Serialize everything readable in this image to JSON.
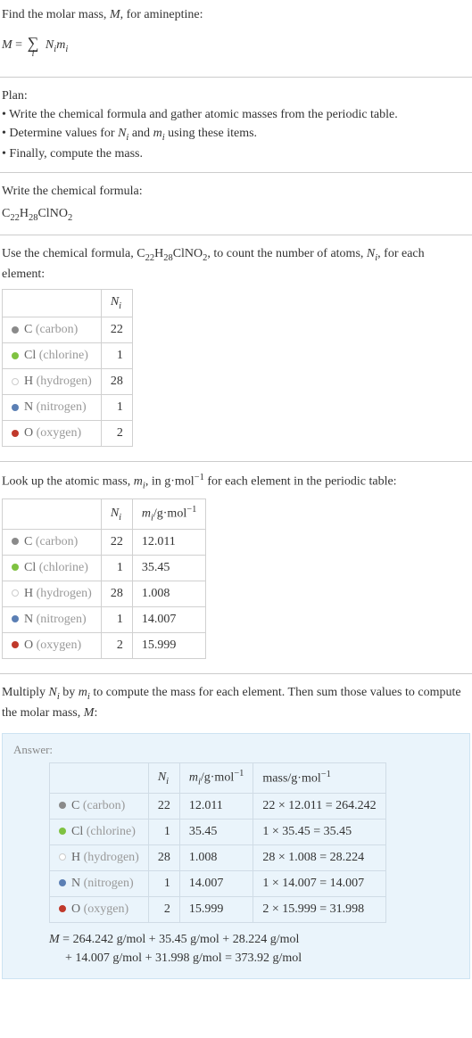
{
  "intro": {
    "line1": "Find the molar mass, ",
    "line1_var": "M",
    "line1_end": ", for amineptine:",
    "eq_lhs": "M",
    "eq_eq": " = ",
    "eq_sigma": "∑",
    "eq_under": "i",
    "eq_rhs1": "N",
    "eq_rhs1_sub": "i",
    "eq_rhs2": "m",
    "eq_rhs2_sub": "i"
  },
  "plan": {
    "title": "Plan:",
    "b1": "• Write the chemical formula and gather atomic masses from the periodic table.",
    "b2_a": "• Determine values for ",
    "b2_n": "N",
    "b2_ni": "i",
    "b2_b": " and ",
    "b2_m": "m",
    "b2_mi": "i",
    "b2_c": " using these items.",
    "b3": "• Finally, compute the mass."
  },
  "chem": {
    "title": "Write the chemical formula:",
    "c": "C",
    "c22": "22",
    "h": "H",
    "h28": "28",
    "cl": "Cl",
    "n": "N",
    "o": "O",
    "o2": "2"
  },
  "count": {
    "pre": "Use the chemical formula, ",
    "post_a": ", to count the number of atoms, ",
    "post_n": "N",
    "post_ni": "i",
    "post_b": ", for each element:",
    "header_n": "N",
    "header_ni": "i",
    "rows": [
      {
        "color": "#8a8a8a",
        "sym": "C",
        "name": "(carbon)",
        "n": "22"
      },
      {
        "color": "#7fc241",
        "sym": "Cl",
        "name": "(chlorine)",
        "n": "1"
      },
      {
        "color": "",
        "outline": true,
        "sym": "H",
        "name": "(hydrogen)",
        "n": "28"
      },
      {
        "color": "#5b7fb4",
        "sym": "N",
        "name": "(nitrogen)",
        "n": "1"
      },
      {
        "color": "#c0392b",
        "sym": "O",
        "name": "(oxygen)",
        "n": "2"
      }
    ]
  },
  "lookup": {
    "pre_a": "Look up the atomic mass, ",
    "pre_m": "m",
    "pre_mi": "i",
    "pre_b": ", in g·mol",
    "pre_exp": "−1",
    "pre_c": " for each element in the periodic table:",
    "header_n": "N",
    "header_ni": "i",
    "header_m": "m",
    "header_mi": "i",
    "header_unit_a": "/g·mol",
    "header_unit_exp": "−1",
    "rows": [
      {
        "color": "#8a8a8a",
        "sym": "C",
        "name": "(carbon)",
        "n": "22",
        "m": "12.011"
      },
      {
        "color": "#7fc241",
        "sym": "Cl",
        "name": "(chlorine)",
        "n": "1",
        "m": "35.45"
      },
      {
        "color": "",
        "outline": true,
        "sym": "H",
        "name": "(hydrogen)",
        "n": "28",
        "m": "1.008"
      },
      {
        "color": "#5b7fb4",
        "sym": "N",
        "name": "(nitrogen)",
        "n": "1",
        "m": "14.007"
      },
      {
        "color": "#c0392b",
        "sym": "O",
        "name": "(oxygen)",
        "n": "2",
        "m": "15.999"
      }
    ]
  },
  "mult": {
    "a": "Multiply ",
    "n": "N",
    "ni": "i",
    "b": " by ",
    "m": "m",
    "mi": "i",
    "c": " to compute the mass for each element. Then sum those values to compute the molar mass, ",
    "mvar": "M",
    "d": ":"
  },
  "answer": {
    "label": "Answer:",
    "header_n": "N",
    "header_ni": "i",
    "header_m": "m",
    "header_mi": "i",
    "header_unit_a": "/g·mol",
    "header_unit_exp": "−1",
    "header_mass_a": "mass/g·mol",
    "header_mass_exp": "−1",
    "rows": [
      {
        "color": "#8a8a8a",
        "sym": "C",
        "name": "(carbon)",
        "n": "22",
        "m": "12.011",
        "calc": "22 × 12.011 = 264.242"
      },
      {
        "color": "#7fc241",
        "sym": "Cl",
        "name": "(chlorine)",
        "n": "1",
        "m": "35.45",
        "calc": "1 × 35.45 = 35.45"
      },
      {
        "color": "",
        "outline": true,
        "sym": "H",
        "name": "(hydrogen)",
        "n": "28",
        "m": "1.008",
        "calc": "28 × 1.008 = 28.224"
      },
      {
        "color": "#5b7fb4",
        "sym": "N",
        "name": "(nitrogen)",
        "n": "1",
        "m": "14.007",
        "calc": "1 × 14.007 = 14.007"
      },
      {
        "color": "#c0392b",
        "sym": "O",
        "name": "(oxygen)",
        "n": "2",
        "m": "15.999",
        "calc": "2 × 15.999 = 31.998"
      }
    ],
    "finalM": "M",
    "final1": " = 264.242 g/mol + 35.45 g/mol + 28.224 g/mol",
    "final2": "+ 14.007 g/mol + 31.998 g/mol = 373.92 g/mol"
  }
}
